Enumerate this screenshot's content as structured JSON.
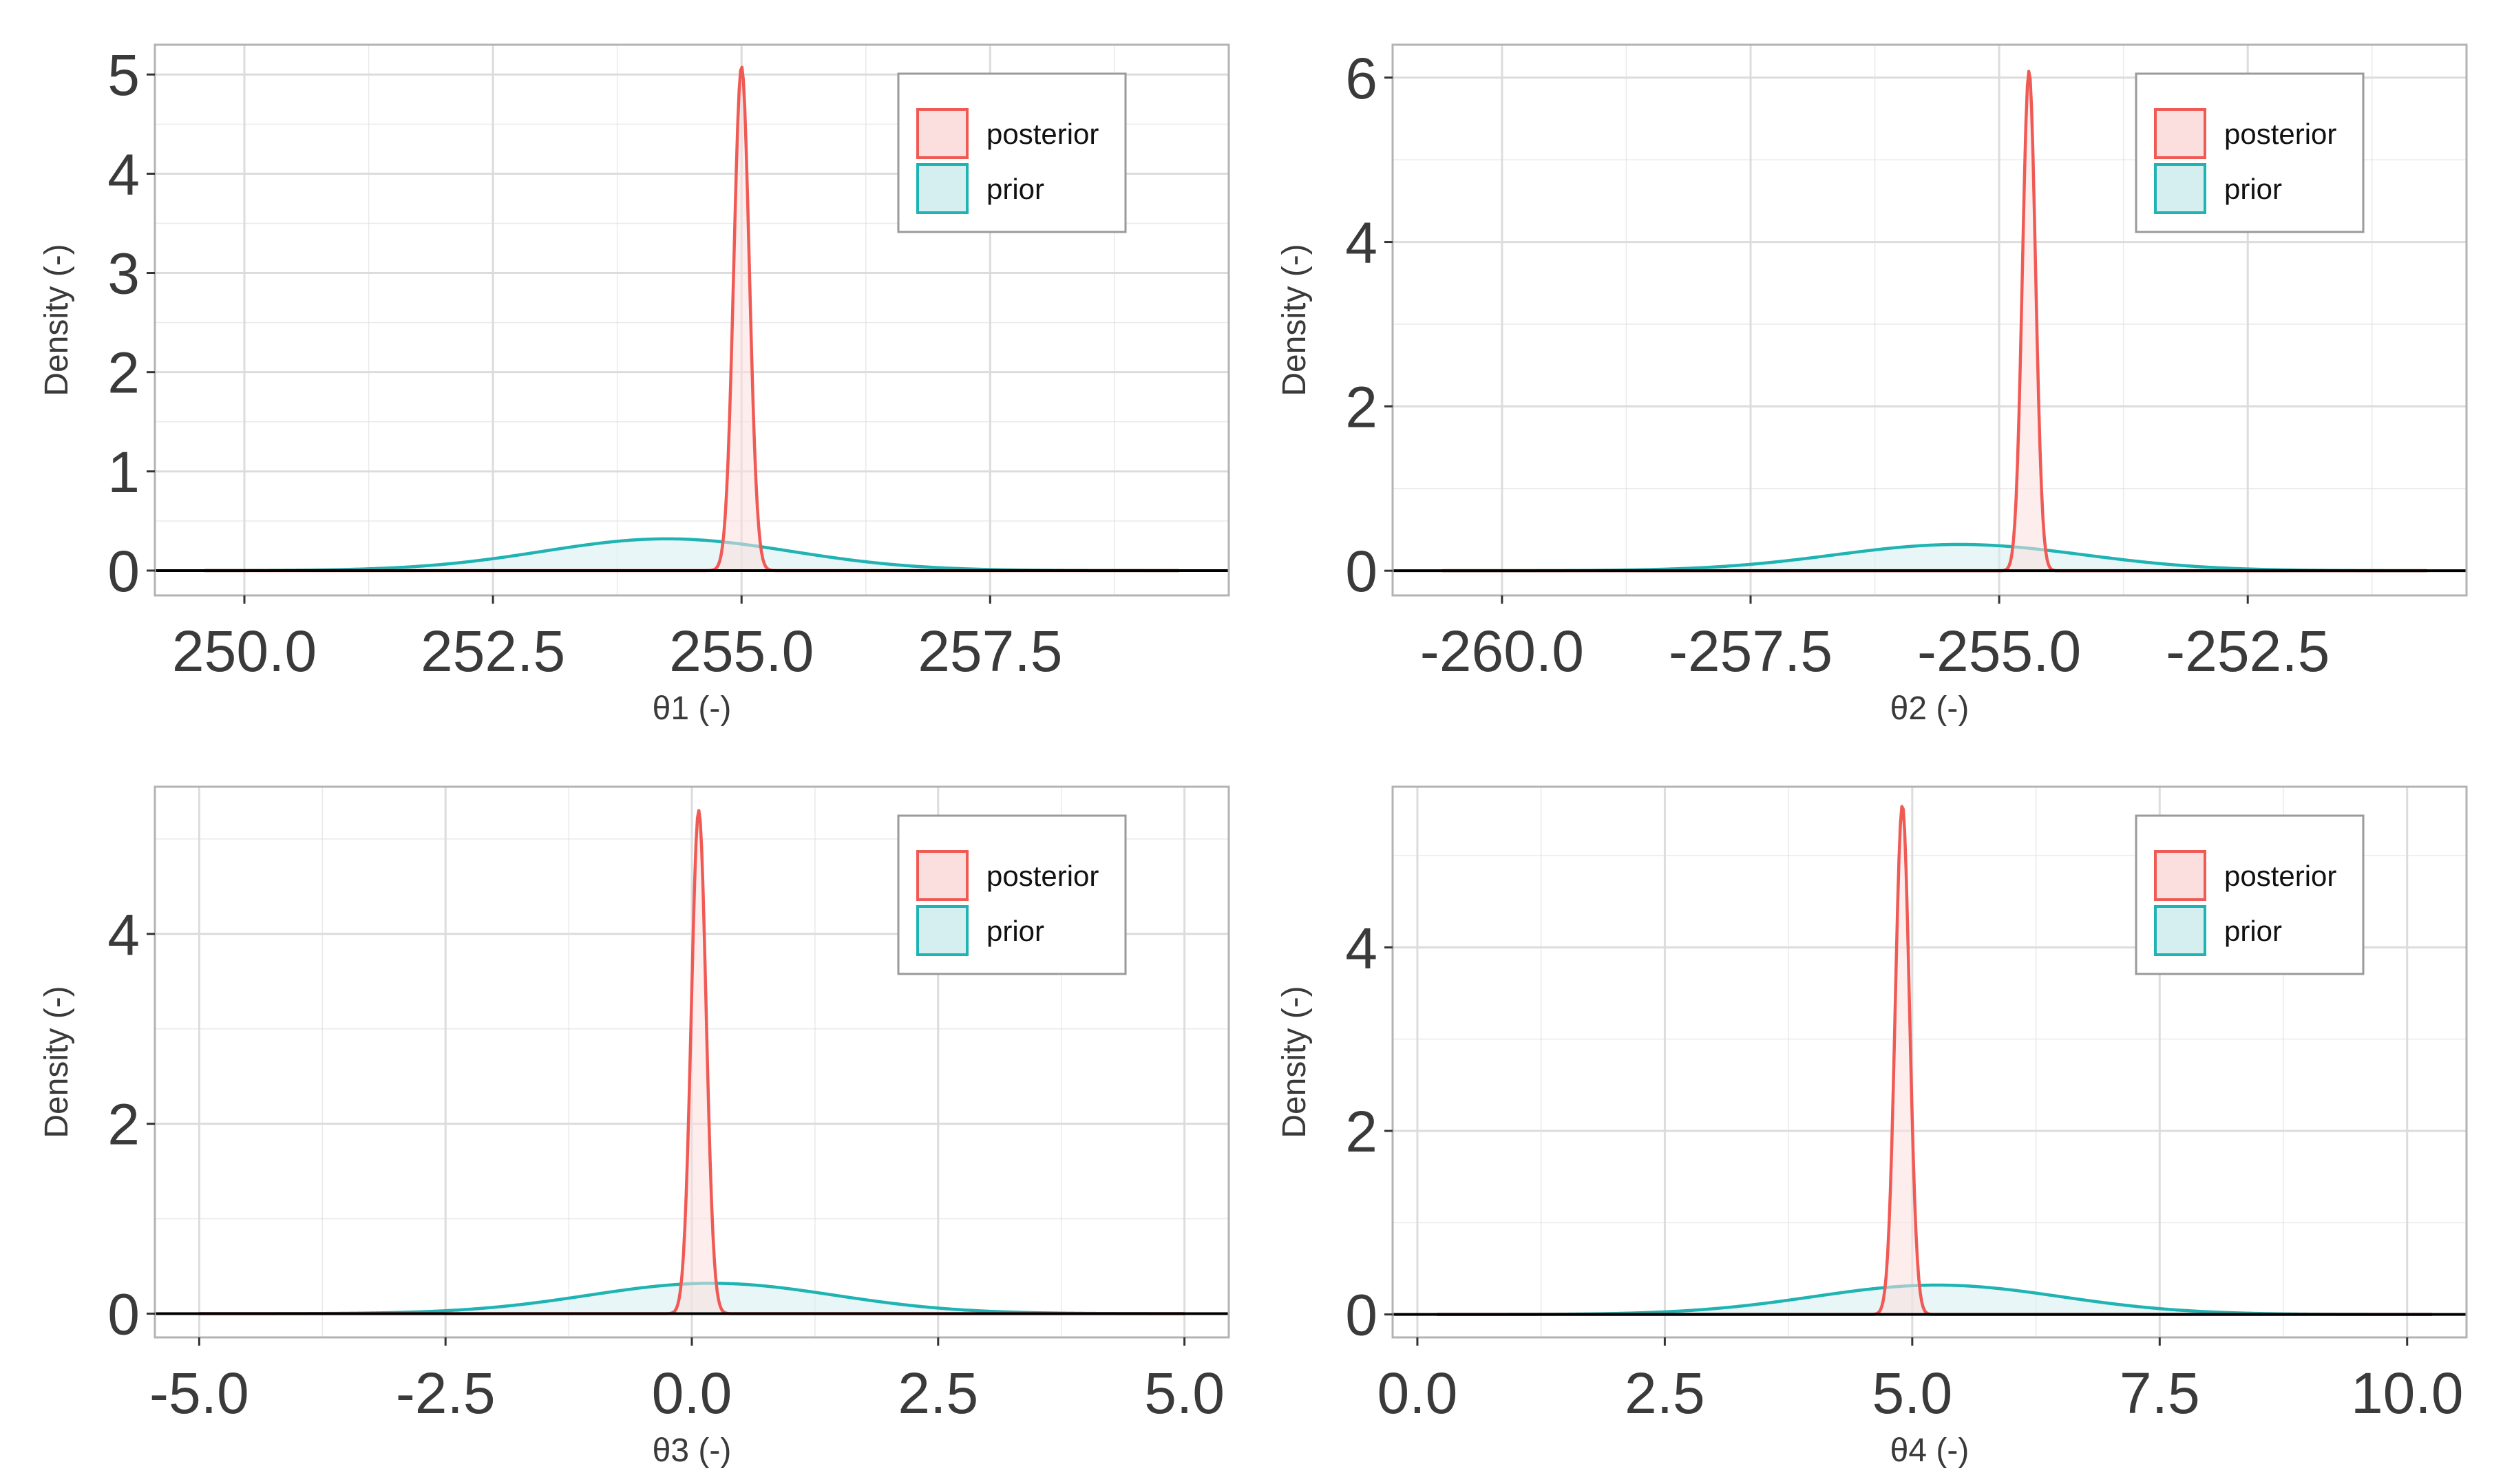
{
  "legend": {
    "posterior_label": "posterior",
    "prior_label": "prior"
  },
  "colors": {
    "posterior_line": "#f05a55",
    "posterior_fill": "#fbdede",
    "prior_line": "#1fb3b3",
    "prior_fill": "#d5eef0",
    "grid": "#dcdcdc",
    "panel_border": "#b3b3b3",
    "baseline": "#000000"
  },
  "chart_data": [
    {
      "type": "area",
      "title": "",
      "xlabel": "θ1 (-)",
      "ylabel": "Density (-)",
      "xlim": [
        249.1,
        259.9
      ],
      "ylim": [
        -0.25,
        5.3
      ],
      "xticks": [
        250.0,
        252.5,
        255.0,
        257.5
      ],
      "xtick_labels": [
        "250.0",
        "252.5",
        "255.0",
        "257.5"
      ],
      "yticks": [
        0,
        1,
        2,
        3,
        4,
        5
      ],
      "ytick_labels": [
        "0",
        "1",
        "2",
        "3",
        "4",
        "5"
      ],
      "x_range": [
        249.6,
        259.4
      ],
      "series": [
        {
          "name": "prior",
          "distribution": "normal",
          "mean": 254.25,
          "sd": 1.25,
          "peak": 0.32
        },
        {
          "name": "posterior",
          "distribution": "normal",
          "mean": 255.0,
          "sd": 0.078,
          "peak": 5.08
        }
      ]
    },
    {
      "type": "area",
      "title": "",
      "xlabel": "θ2 (-)",
      "ylabel": "Density (-)",
      "xlim": [
        -261.1,
        -250.3
      ],
      "ylim": [
        -0.3,
        6.4
      ],
      "xticks": [
        -260.0,
        -257.5,
        -255.0,
        -252.5
      ],
      "xtick_labels": [
        "-260.0",
        "-257.5",
        "-255.0",
        "-252.5"
      ],
      "yticks": [
        0,
        2,
        4,
        6
      ],
      "ytick_labels": [
        "0",
        "2",
        "4",
        "6"
      ],
      "x_range": [
        -260.6,
        -250.7
      ],
      "series": [
        {
          "name": "prior",
          "distribution": "normal",
          "mean": -255.4,
          "sd": 1.25,
          "peak": 0.32
        },
        {
          "name": "posterior",
          "distribution": "normal",
          "mean": -254.7,
          "sd": 0.066,
          "peak": 6.08
        }
      ]
    },
    {
      "type": "area",
      "title": "",
      "xlabel": "θ3 (-)",
      "ylabel": "Density (-)",
      "xlim": [
        -5.45,
        5.45
      ],
      "ylim": [
        -0.25,
        5.55
      ],
      "xticks": [
        -5.0,
        -2.5,
        0.0,
        2.5,
        5.0
      ],
      "xtick_labels": [
        "-5.0",
        "-2.5",
        "0.0",
        "2.5",
        "5.0"
      ],
      "yticks": [
        0,
        2,
        4
      ],
      "ytick_labels": [
        "0",
        "2",
        "4"
      ],
      "x_range": [
        -5.0,
        5.0
      ],
      "series": [
        {
          "name": "prior",
          "distribution": "normal",
          "mean": 0.2,
          "sd": 1.25,
          "peak": 0.32
        },
        {
          "name": "posterior",
          "distribution": "normal",
          "mean": 0.07,
          "sd": 0.075,
          "peak": 5.3
        }
      ]
    },
    {
      "type": "area",
      "title": "",
      "xlabel": "θ4 (-)",
      "ylabel": "Density (-)",
      "xlim": [
        -0.25,
        10.6
      ],
      "ylim": [
        -0.25,
        5.75
      ],
      "xticks": [
        0.0,
        2.5,
        5.0,
        7.5,
        10.0
      ],
      "xtick_labels": [
        "0.0",
        "2.5",
        "5.0",
        "7.5",
        "10.0"
      ],
      "yticks": [
        0,
        2,
        4
      ],
      "ytick_labels": [
        "0",
        "2",
        "4"
      ],
      "x_range": [
        0.2,
        10.25
      ],
      "series": [
        {
          "name": "prior",
          "distribution": "normal",
          "mean": 5.25,
          "sd": 1.25,
          "peak": 0.32
        },
        {
          "name": "posterior",
          "distribution": "normal",
          "mean": 4.9,
          "sd": 0.072,
          "peak": 5.55
        }
      ]
    }
  ]
}
